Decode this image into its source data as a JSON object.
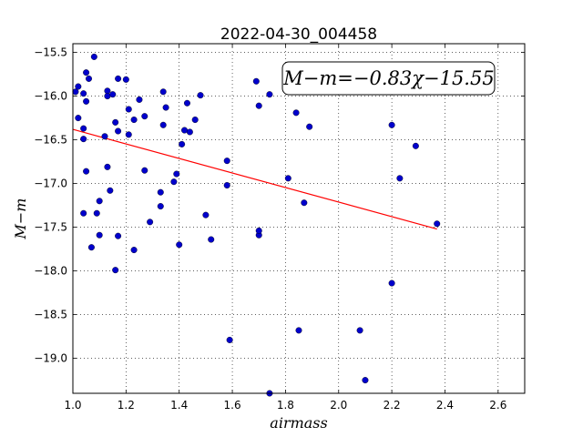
{
  "chart_data": {
    "type": "scatter",
    "title": "2022-04-30_004458",
    "xlabel": "airmass",
    "ylabel": "M−m",
    "xlim": [
      1.0,
      2.7
    ],
    "ylim": [
      -15.4,
      -19.4
    ],
    "y_inverted": true,
    "grid": true,
    "xticks": [
      1.0,
      1.2,
      1.4,
      1.6,
      1.8,
      2.0,
      2.2,
      2.4,
      2.6
    ],
    "xtick_labels": [
      "1.0",
      "1.2",
      "1.4",
      "1.6",
      "1.8",
      "2.0",
      "2.2",
      "2.4",
      "2.6"
    ],
    "yticks": [
      -15.5,
      -16.0,
      -16.5,
      -17.0,
      -17.5,
      -18.0,
      -18.5,
      -19.0
    ],
    "ytick_labels": [
      "−15.5",
      "−16.0",
      "−16.5",
      "−17.0",
      "−17.5",
      "−18.0",
      "−18.5",
      "−19.0"
    ],
    "annotation": "M−m=−0.83χ−15.55",
    "point_color": "#0000cc",
    "fit_color": "#ff0000",
    "fit_line": {
      "x": [
        1.0,
        2.37
      ],
      "y": [
        -16.38,
        -17.52
      ]
    },
    "points": [
      {
        "x": 1.01,
        "y": -15.95
      },
      {
        "x": 1.02,
        "y": -15.89
      },
      {
        "x": 1.02,
        "y": -16.25
      },
      {
        "x": 1.04,
        "y": -16.49
      },
      {
        "x": 1.04,
        "y": -16.37
      },
      {
        "x": 1.04,
        "y": -15.97
      },
      {
        "x": 1.05,
        "y": -15.73
      },
      {
        "x": 1.05,
        "y": -16.06
      },
      {
        "x": 1.05,
        "y": -16.86
      },
      {
        "x": 1.04,
        "y": -17.34
      },
      {
        "x": 1.06,
        "y": -15.8
      },
      {
        "x": 1.07,
        "y": -17.73
      },
      {
        "x": 1.08,
        "y": -15.55
      },
      {
        "x": 1.09,
        "y": -17.34
      },
      {
        "x": 1.1,
        "y": -17.2
      },
      {
        "x": 1.1,
        "y": -17.59
      },
      {
        "x": 1.12,
        "y": -16.46
      },
      {
        "x": 1.13,
        "y": -15.94
      },
      {
        "x": 1.13,
        "y": -16.0
      },
      {
        "x": 1.13,
        "y": -16.81
      },
      {
        "x": 1.14,
        "y": -17.08
      },
      {
        "x": 1.15,
        "y": -15.98
      },
      {
        "x": 1.16,
        "y": -16.3
      },
      {
        "x": 1.16,
        "y": -17.99
      },
      {
        "x": 1.17,
        "y": -15.8
      },
      {
        "x": 1.17,
        "y": -16.4
      },
      {
        "x": 1.17,
        "y": -17.6
      },
      {
        "x": 1.2,
        "y": -15.81
      },
      {
        "x": 1.21,
        "y": -16.15
      },
      {
        "x": 1.21,
        "y": -16.44
      },
      {
        "x": 1.23,
        "y": -16.27
      },
      {
        "x": 1.23,
        "y": -17.76
      },
      {
        "x": 1.25,
        "y": -16.04
      },
      {
        "x": 1.27,
        "y": -16.23
      },
      {
        "x": 1.27,
        "y": -16.85
      },
      {
        "x": 1.29,
        "y": -17.44
      },
      {
        "x": 1.33,
        "y": -17.1
      },
      {
        "x": 1.33,
        "y": -17.26
      },
      {
        "x": 1.34,
        "y": -15.95
      },
      {
        "x": 1.34,
        "y": -16.33
      },
      {
        "x": 1.35,
        "y": -16.13
      },
      {
        "x": 1.38,
        "y": -16.98
      },
      {
        "x": 1.39,
        "y": -16.89
      },
      {
        "x": 1.4,
        "y": -17.7
      },
      {
        "x": 1.41,
        "y": -16.55
      },
      {
        "x": 1.42,
        "y": -16.39
      },
      {
        "x": 1.43,
        "y": -16.08
      },
      {
        "x": 1.44,
        "y": -16.41
      },
      {
        "x": 1.46,
        "y": -16.27
      },
      {
        "x": 1.48,
        "y": -15.99
      },
      {
        "x": 1.5,
        "y": -17.36
      },
      {
        "x": 1.52,
        "y": -17.64
      },
      {
        "x": 1.58,
        "y": -16.74
      },
      {
        "x": 1.58,
        "y": -17.02
      },
      {
        "x": 1.59,
        "y": -18.79
      },
      {
        "x": 1.69,
        "y": -15.83
      },
      {
        "x": 1.7,
        "y": -16.11
      },
      {
        "x": 1.7,
        "y": -17.59
      },
      {
        "x": 1.7,
        "y": -17.54
      },
      {
        "x": 1.74,
        "y": -15.98
      },
      {
        "x": 1.74,
        "y": -19.4
      },
      {
        "x": 1.81,
        "y": -16.94
      },
      {
        "x": 1.84,
        "y": -16.19
      },
      {
        "x": 1.85,
        "y": -18.68
      },
      {
        "x": 1.87,
        "y": -17.22
      },
      {
        "x": 1.89,
        "y": -16.35
      },
      {
        "x": 2.08,
        "y": -18.68
      },
      {
        "x": 2.1,
        "y": -19.25
      },
      {
        "x": 2.2,
        "y": -16.33
      },
      {
        "x": 2.2,
        "y": -18.14
      },
      {
        "x": 2.23,
        "y": -16.94
      },
      {
        "x": 2.29,
        "y": -16.57
      },
      {
        "x": 2.37,
        "y": -17.46
      }
    ]
  }
}
